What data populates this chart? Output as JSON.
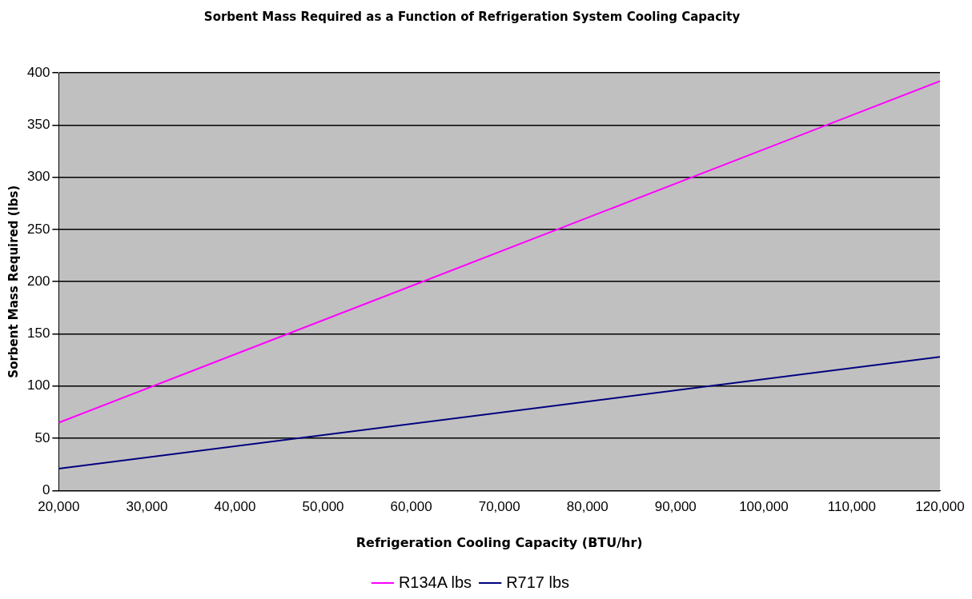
{
  "chart_data": {
    "type": "line",
    "title": "Sorbent Mass Required as a Function of Refrigeration System Cooling Capacity",
    "xlabel": "Refrigeration Cooling Capacity (BTU/hr)",
    "ylabel": "Sorbent Mass Required (lbs)",
    "x": [
      20000,
      120000
    ],
    "series": [
      {
        "name": "R134A lbs",
        "color": "#ff00ff",
        "values": [
          65,
          392
        ]
      },
      {
        "name": "R717 lbs",
        "color": "#000080",
        "values": [
          21,
          128
        ]
      }
    ],
    "xlim": [
      20000,
      120000
    ],
    "xticks": [
      {
        "value": 20000,
        "label": "20,000"
      },
      {
        "value": 30000,
        "label": "30,000"
      },
      {
        "value": 40000,
        "label": "40,000"
      },
      {
        "value": 50000,
        "label": "50,000"
      },
      {
        "value": 60000,
        "label": "60,000"
      },
      {
        "value": 70000,
        "label": "70,000"
      },
      {
        "value": 80000,
        "label": "80,000"
      },
      {
        "value": 90000,
        "label": "90,000"
      },
      {
        "value": 100000,
        "label": "100,000"
      },
      {
        "value": 110000,
        "label": "110,000"
      },
      {
        "value": 120000,
        "label": "120,000"
      }
    ],
    "ylim": [
      0,
      400
    ],
    "yticks": [
      0,
      50,
      100,
      150,
      200,
      250,
      300,
      350,
      400
    ],
    "grid": "y",
    "legend": "bottom",
    "marker": "none",
    "line_style": "solid"
  }
}
